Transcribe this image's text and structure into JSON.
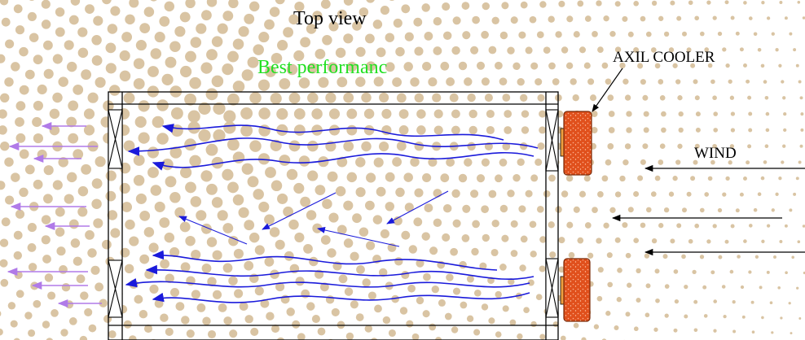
{
  "title": "Top view",
  "subtitle": "Best performanc",
  "labels": {
    "cooler": "AXIL COOLER",
    "wind": "WIND"
  },
  "colors": {
    "subtitle": "#22e022",
    "airflow": "#1a1adb",
    "exhaust": "#b07ae8",
    "cooler_fill": "#e0501c",
    "cooler_dot": "#ffb090",
    "dots": "#d9c4a3",
    "structure": "#000000"
  },
  "icons": {
    "cooler": "air-cooler-icon",
    "exhaust_fan": "fan-crossbox-icon",
    "wind": "arrow-left-icon"
  }
}
